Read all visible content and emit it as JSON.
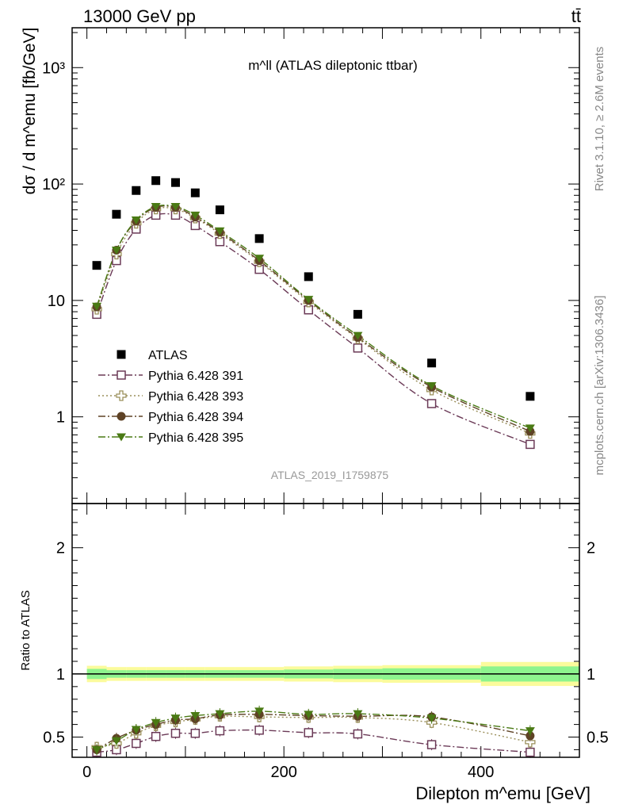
{
  "header": {
    "left": "13000 GeV pp",
    "right": "tt̄"
  },
  "side": {
    "rivet": "Rivet 3.1.10, ≥ 2.6M events",
    "mcplots": "mcplots.cern.ch [arXiv:1306.3436]"
  },
  "chart_data": {
    "type": "scatter",
    "title": "m^ll (ATLAS dileptonic ttbar)",
    "analysis_label": "ATLAS_2019_I1759875",
    "xlabel": "Dilepton m^emu [GeV]",
    "ylabel": "dσ / d m^emu [fb/GeV]",
    "ratio_ylabel": "Ratio to ATLAS",
    "xlim": [
      -15,
      500
    ],
    "ylim": [
      0.18,
      2200
    ],
    "ylog": true,
    "ratio_ylim": [
      0.34,
      2.35
    ],
    "x_ticks": [
      0,
      200,
      400
    ],
    "x_tick_labels": [
      "0",
      "200",
      "400"
    ],
    "y_ticks": [
      1,
      10,
      100,
      1000
    ],
    "y_tick_labels": [
      "1",
      "10",
      "10²",
      "10³"
    ],
    "ratio_ticks": [
      0.5,
      1,
      2
    ],
    "ratio_tick_labels": [
      "0.5",
      "1",
      "2"
    ],
    "legend_position": "lower-left",
    "bin_edges": [
      0,
      20,
      40,
      60,
      80,
      100,
      120,
      150,
      200,
      250,
      300,
      400,
      500
    ],
    "x": [
      10,
      30,
      50,
      70,
      90,
      110,
      135,
      175,
      225,
      275,
      350,
      450
    ],
    "series": [
      {
        "name": "ATLAS",
        "color": "#000000",
        "marker": "filled-square",
        "line": "none",
        "values": [
          20,
          55,
          88,
          107,
          103,
          84,
          60,
          34,
          16,
          7.6,
          2.9,
          1.5
        ],
        "ratio": [
          1,
          1,
          1,
          1,
          1,
          1,
          1,
          1,
          1,
          1,
          1,
          1
        ]
      },
      {
        "name": "Pythia 6.428 391",
        "color": "#6b3a57",
        "marker": "open-square",
        "line": "dashdot",
        "values": [
          7.6,
          22,
          41,
          54,
          54,
          44,
          32,
          18.5,
          8.3,
          3.9,
          1.3,
          0.58
        ],
        "ratio": [
          0.38,
          0.4,
          0.45,
          0.505,
          0.53,
          0.53,
          0.55,
          0.555,
          0.535,
          0.525,
          0.44,
          0.38
        ]
      },
      {
        "name": "Pythia 6.428 393",
        "color": "#9a8f5a",
        "marker": "open-cross",
        "line": "dotted",
        "values": [
          8.4,
          25,
          46,
          61,
          61,
          51,
          37.5,
          21.5,
          9.7,
          4.7,
          1.7,
          0.72
        ],
        "ratio": [
          0.42,
          0.45,
          0.53,
          0.59,
          0.62,
          0.64,
          0.665,
          0.66,
          0.655,
          0.655,
          0.615,
          0.46
        ]
      },
      {
        "name": "Pythia 6.428 394",
        "color": "#5e4225",
        "marker": "filled-circle",
        "line": "dashdot",
        "values": [
          8.8,
          27,
          48,
          63,
          63,
          52,
          38.5,
          22,
          10,
          4.8,
          1.8,
          0.75
        ],
        "ratio": [
          0.4,
          0.49,
          0.555,
          0.6,
          0.635,
          0.645,
          0.675,
          0.68,
          0.67,
          0.665,
          0.66,
          0.51
        ]
      },
      {
        "name": "Pythia 6.428 395",
        "color": "#4a7a14",
        "marker": "filled-triangle-down",
        "line": "dashdot",
        "values": [
          8.9,
          27,
          49,
          64,
          64,
          54,
          39.5,
          23,
          10.2,
          5,
          1.85,
          0.8
        ],
        "ratio": [
          0.4,
          0.47,
          0.56,
          0.615,
          0.65,
          0.67,
          0.685,
          0.705,
          0.68,
          0.685,
          0.65,
          0.55
        ]
      }
    ],
    "ratio_bands": {
      "inner_color": "#8ef48e",
      "outer_color": "#fbfb9c",
      "inner_halfwidth": [
        0.04,
        0.03,
        0.03,
        0.03,
        0.03,
        0.03,
        0.03,
        0.03,
        0.035,
        0.04,
        0.045,
        0.06
      ],
      "outer_halfwidth": [
        0.065,
        0.055,
        0.055,
        0.055,
        0.055,
        0.055,
        0.055,
        0.055,
        0.06,
        0.065,
        0.07,
        0.095
      ]
    }
  }
}
